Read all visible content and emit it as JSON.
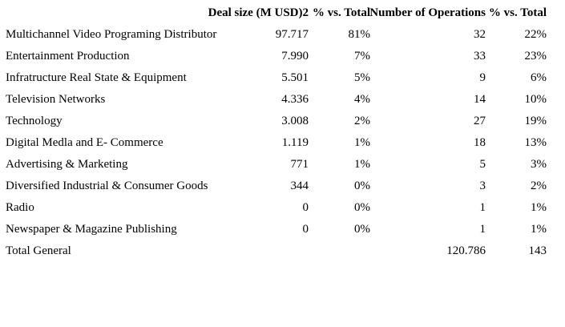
{
  "colors": {
    "text": "#000000",
    "background": "#ffffff"
  },
  "table": {
    "columns": [
      {
        "label": ""
      },
      {
        "label": "Deal size (M USD)2"
      },
      {
        "label": "% vs. Total"
      },
      {
        "label": "Number of Operations"
      },
      {
        "label": "% vs. Total"
      }
    ],
    "rows": [
      {
        "label": "Multichannel Video Programing Distributor",
        "deal_size": "97.717",
        "deal_pct": "81%",
        "operations": "32",
        "ops_pct": "22%"
      },
      {
        "label": "Entertainment Production",
        "deal_size": "7.990",
        "deal_pct": "7%",
        "operations": "33",
        "ops_pct": "23%"
      },
      {
        "label": "Infratructure Real State & Equipment",
        "deal_size": "5.501",
        "deal_pct": "5%",
        "operations": "9",
        "ops_pct": "6%"
      },
      {
        "label": "Television Networks",
        "deal_size": "4.336",
        "deal_pct": "4%",
        "operations": "14",
        "ops_pct": "10%"
      },
      {
        "label": "Technology",
        "deal_size": "3.008",
        "deal_pct": "2%",
        "operations": "27",
        "ops_pct": "19%"
      },
      {
        "label": "Digital Medla and E- Commerce",
        "deal_size": "1.119",
        "deal_pct": "1%",
        "operations": "18",
        "ops_pct": "13%"
      },
      {
        "label": "Advertising & Marketing",
        "deal_size": "771",
        "deal_pct": "1%",
        "operations": "5",
        "ops_pct": "3%"
      },
      {
        "label": "Diversified Industrial & Consumer Goods",
        "deal_size": "344",
        "deal_pct": "0%",
        "operations": "3",
        "ops_pct": "2%"
      },
      {
        "label": "Radio",
        "deal_size": "0",
        "deal_pct": "0%",
        "operations": "1",
        "ops_pct": "1%"
      },
      {
        "label": "Newspaper & Magazine Publishing",
        "deal_size": "0",
        "deal_pct": "0%",
        "operations": "1",
        "ops_pct": "1%"
      },
      {
        "label": "Total General",
        "deal_size": "",
        "deal_pct": "",
        "operations": "120.786",
        "ops_pct": "143"
      }
    ]
  }
}
